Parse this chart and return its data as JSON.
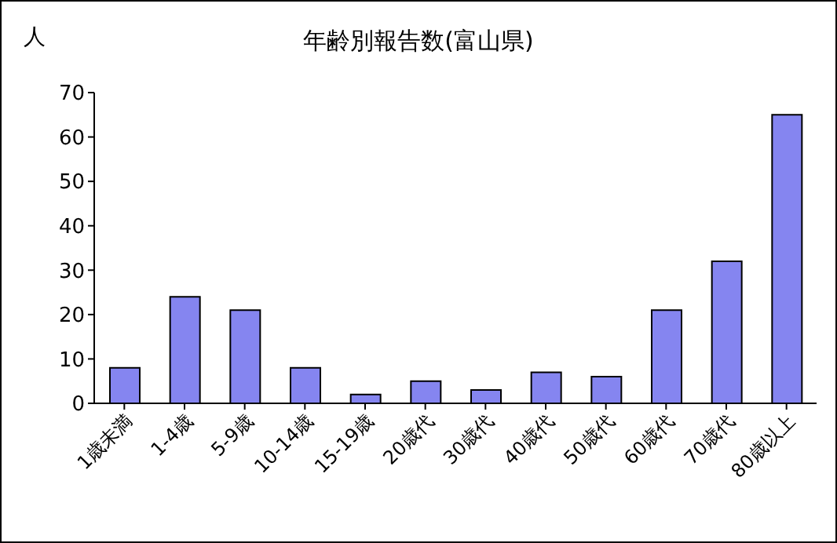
{
  "chart_data": {
    "type": "bar",
    "title": "年齢別報告数(富山県)",
    "ylabel": "人",
    "categories": [
      "1歳未満",
      "1-4歳",
      "5-9歳",
      "10-14歳",
      "15-19歳",
      "20歳代",
      "30歳代",
      "40歳代",
      "50歳代",
      "60歳代",
      "70歳代",
      "80歳以上"
    ],
    "values": [
      8,
      24,
      21,
      8,
      2,
      5,
      3,
      7,
      6,
      21,
      32,
      65
    ],
    "color": "#8585f0",
    "ylim": [
      0,
      70
    ],
    "yticks": [
      0,
      10,
      20,
      30,
      40,
      50,
      60,
      70
    ],
    "grid": false,
    "legend": false
  }
}
